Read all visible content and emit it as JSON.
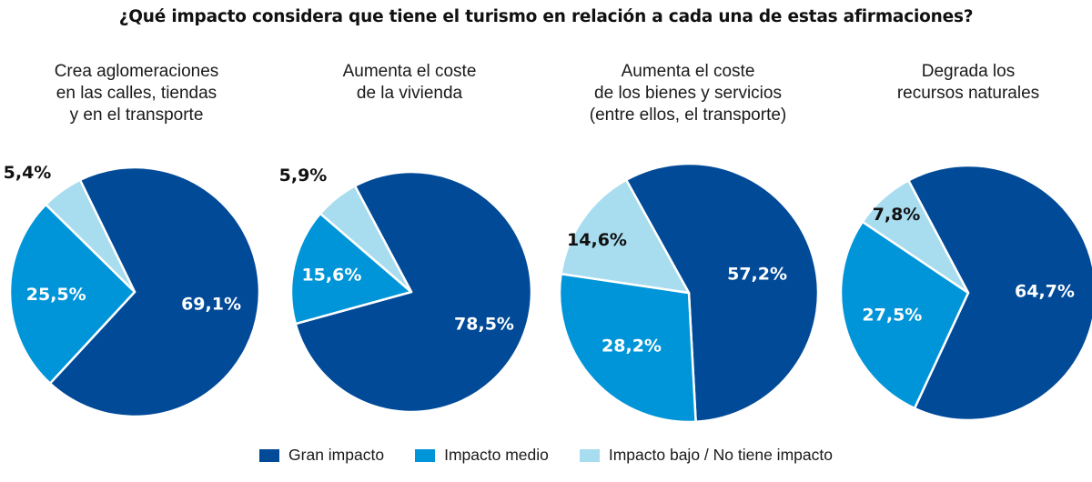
{
  "title": "¿Qué impacto considera que tiene el turismo en relación a cada una de estas afirmaciones?",
  "colors": {
    "gran": "#004a98",
    "medio": "#0095d8",
    "bajo": "#a8dcef",
    "label_dark": "#111111",
    "label_light": "#ffffff"
  },
  "legend": [
    {
      "key": "gran",
      "label": "Gran impacto"
    },
    {
      "key": "medio",
      "label": "Impacto medio"
    },
    {
      "key": "bajo",
      "label": "Impacto bajo / No tiene impacto"
    }
  ],
  "subtitles": [
    "Crea aglomeraciones\nen las calles, tiendas\ny en el transporte",
    "Aumenta el coste\nde la vivienda",
    "Aumenta el coste\nde los bienes y servicios\n(entre ellos, el transporte)",
    "Degrada los\nrecursos naturales"
  ],
  "chart_data": [
    {
      "type": "pie",
      "title": "Crea aglomeraciones en las calles, tiendas y en el transporte",
      "slices": [
        {
          "name": "Gran impacto",
          "value": 69.1,
          "label": "69,1%"
        },
        {
          "name": "Impacto medio",
          "value": 25.5,
          "label": "25,5%"
        },
        {
          "name": "Impacto bajo / No tiene impacto",
          "value": 5.4,
          "label": "5,4%"
        }
      ]
    },
    {
      "type": "pie",
      "title": "Aumenta el coste de la vivienda",
      "slices": [
        {
          "name": "Gran impacto",
          "value": 78.5,
          "label": "78,5%"
        },
        {
          "name": "Impacto medio",
          "value": 15.6,
          "label": "15,6%"
        },
        {
          "name": "Impacto bajo / No tiene impacto",
          "value": 5.9,
          "label": "5,9%"
        }
      ]
    },
    {
      "type": "pie",
      "title": "Aumenta el coste de los bienes y servicios (entre ellos, el transporte)",
      "slices": [
        {
          "name": "Gran impacto",
          "value": 57.2,
          "label": "57,2%"
        },
        {
          "name": "Impacto medio",
          "value": 28.2,
          "label": "28,2%"
        },
        {
          "name": "Impacto bajo / No tiene impacto",
          "value": 14.6,
          "label": "14,6%"
        }
      ]
    },
    {
      "type": "pie",
      "title": "Degrada los recursos naturales",
      "slices": [
        {
          "name": "Gran impacto",
          "value": 64.7,
          "label": "64,7%"
        },
        {
          "name": "Impacto medio",
          "value": 27.5,
          "label": "27,5%"
        },
        {
          "name": "Impacto bajo / No tiene impacto",
          "value": 7.8,
          "label": "7,8%"
        }
      ]
    }
  ]
}
